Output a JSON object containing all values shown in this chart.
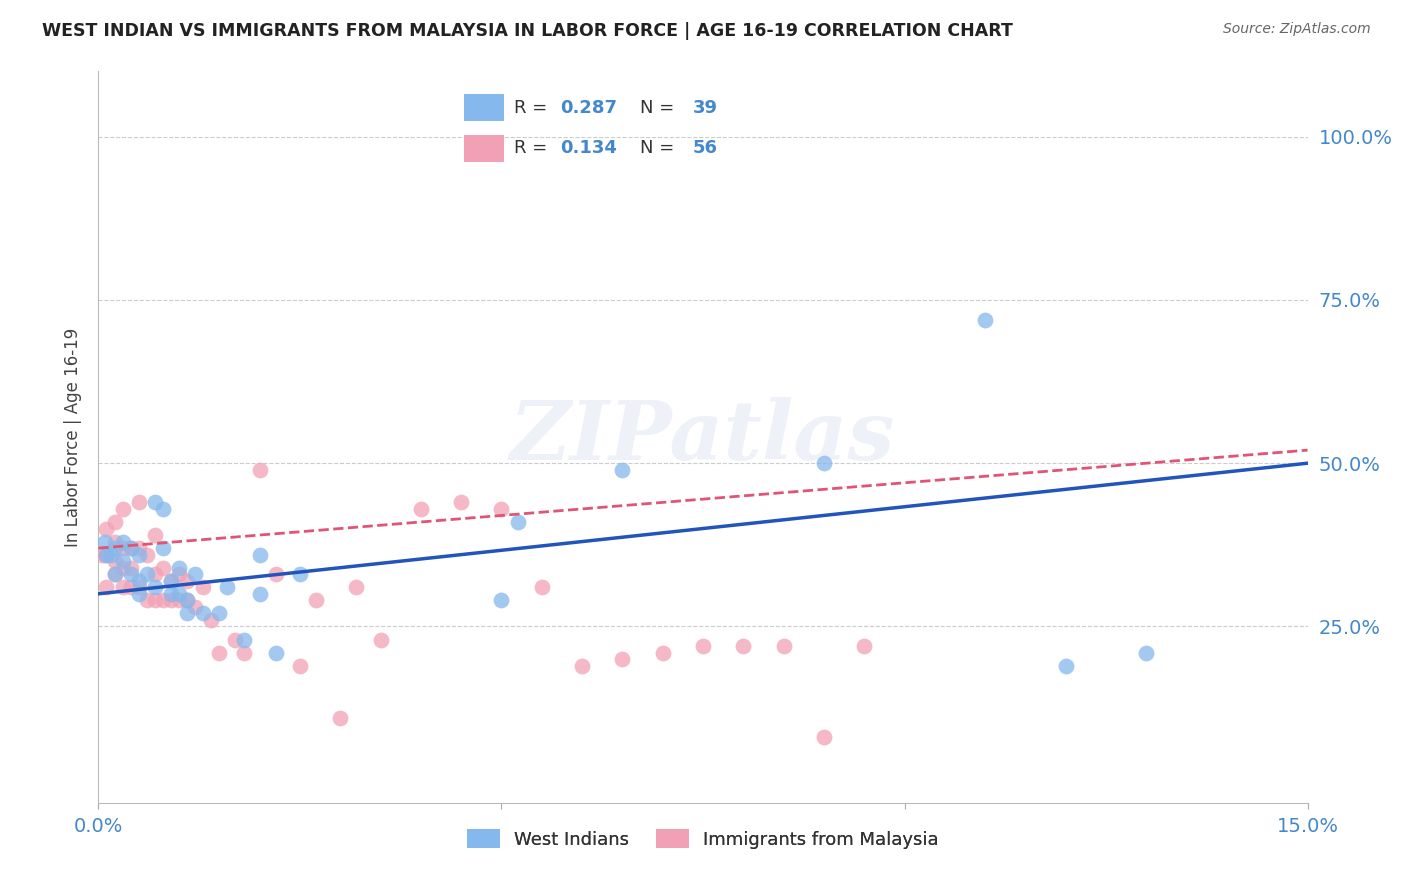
{
  "title": "WEST INDIAN VS IMMIGRANTS FROM MALAYSIA IN LABOR FORCE | AGE 16-19 CORRELATION CHART",
  "source": "Source: ZipAtlas.com",
  "ylabel": "In Labor Force | Age 16-19",
  "xlim": [
    0.0,
    0.15
  ],
  "ylim": [
    -0.02,
    1.1
  ],
  "ytick_vals": [
    0.25,
    0.5,
    0.75,
    1.0
  ],
  "ytick_labels": [
    "25.0%",
    "50.0%",
    "75.0%",
    "100.0%"
  ],
  "xtick_vals": [
    0.0,
    0.15
  ],
  "xtick_labels": [
    "0.0%",
    "15.0%"
  ],
  "legend_label1": "West Indians",
  "legend_label2": "Immigrants from Malaysia",
  "R1": 0.287,
  "N1": 39,
  "R2": 0.134,
  "N2": 56,
  "color1": "#85B8EC",
  "color2": "#F2A0B5",
  "line_color1": "#2255BB",
  "line_color2": "#E05575",
  "watermark": "ZIPatlas",
  "blue_points_x": [
    0.0008,
    0.001,
    0.0015,
    0.002,
    0.002,
    0.003,
    0.003,
    0.004,
    0.004,
    0.005,
    0.005,
    0.005,
    0.006,
    0.007,
    0.007,
    0.008,
    0.008,
    0.009,
    0.009,
    0.01,
    0.01,
    0.011,
    0.011,
    0.012,
    0.013,
    0.015,
    0.016,
    0.018,
    0.02,
    0.02,
    0.022,
    0.025,
    0.05,
    0.052,
    0.065,
    0.09,
    0.11,
    0.12,
    0.13
  ],
  "blue_points_y": [
    0.38,
    0.36,
    0.36,
    0.37,
    0.33,
    0.38,
    0.35,
    0.37,
    0.33,
    0.3,
    0.32,
    0.36,
    0.33,
    0.44,
    0.31,
    0.43,
    0.37,
    0.3,
    0.32,
    0.3,
    0.34,
    0.29,
    0.27,
    0.33,
    0.27,
    0.27,
    0.31,
    0.23,
    0.36,
    0.3,
    0.21,
    0.33,
    0.29,
    0.41,
    0.49,
    0.5,
    0.72,
    0.19,
    0.21
  ],
  "pink_points_x": [
    0.0005,
    0.001,
    0.001,
    0.001,
    0.002,
    0.002,
    0.002,
    0.002,
    0.003,
    0.003,
    0.003,
    0.003,
    0.004,
    0.004,
    0.004,
    0.005,
    0.005,
    0.005,
    0.006,
    0.006,
    0.007,
    0.007,
    0.007,
    0.008,
    0.008,
    0.009,
    0.009,
    0.01,
    0.01,
    0.011,
    0.011,
    0.012,
    0.013,
    0.014,
    0.015,
    0.017,
    0.018,
    0.02,
    0.022,
    0.025,
    0.027,
    0.03,
    0.032,
    0.035,
    0.04,
    0.045,
    0.05,
    0.055,
    0.06,
    0.065,
    0.07,
    0.075,
    0.08,
    0.085,
    0.09,
    0.095
  ],
  "pink_points_y": [
    0.36,
    0.31,
    0.36,
    0.4,
    0.33,
    0.35,
    0.38,
    0.41,
    0.31,
    0.34,
    0.37,
    0.43,
    0.31,
    0.34,
    0.37,
    0.31,
    0.37,
    0.44,
    0.29,
    0.36,
    0.29,
    0.33,
    0.39,
    0.29,
    0.34,
    0.29,
    0.32,
    0.29,
    0.33,
    0.29,
    0.32,
    0.28,
    0.31,
    0.26,
    0.21,
    0.23,
    0.21,
    0.49,
    0.33,
    0.19,
    0.29,
    0.11,
    0.31,
    0.23,
    0.43,
    0.44,
    0.43,
    0.31,
    0.19,
    0.2,
    0.21,
    0.22,
    0.22,
    0.22,
    0.08,
    0.22
  ],
  "blue_reg": [
    0.3,
    0.5
  ],
  "pink_reg": [
    0.37,
    0.52
  ],
  "grid_color": "#cccccc",
  "grid_linestyle": "--"
}
